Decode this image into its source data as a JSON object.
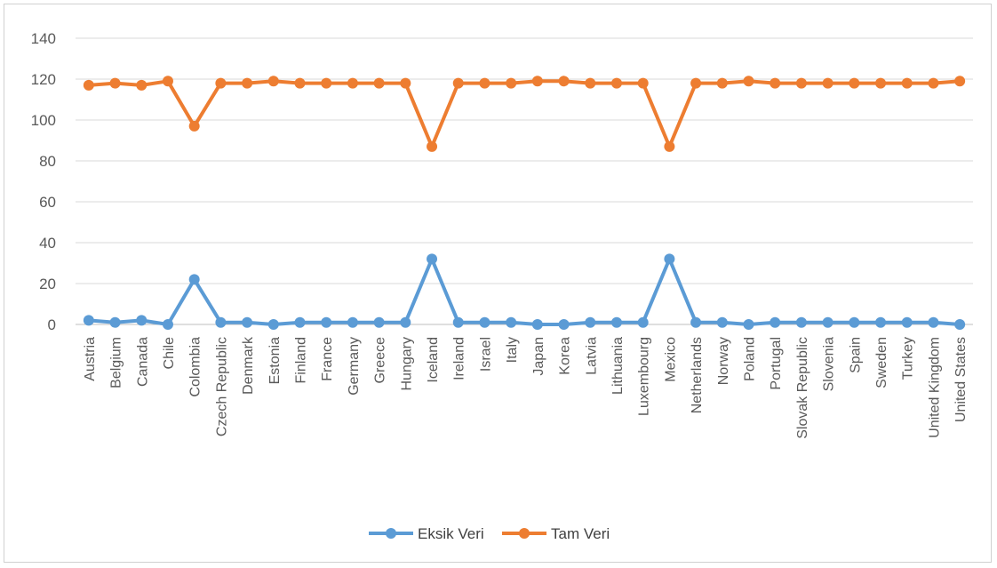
{
  "chart_data": {
    "type": "line",
    "categories": [
      "Austria",
      "Belgium",
      "Canada",
      "Chile",
      "Colombia",
      "Czech Republic",
      "Denmark",
      "Estonia",
      "Finland",
      "France",
      "Germany",
      "Greece",
      "Hungary",
      "Iceland",
      "Ireland",
      "Israel",
      "Italy",
      "Japan",
      "Korea",
      "Latvia",
      "Lithuania",
      "Luxembourg",
      "Mexico",
      "Netherlands",
      "Norway",
      "Poland",
      "Portugal",
      "Slovak Republic",
      "Slovenia",
      "Spain",
      "Sweden",
      "Turkey",
      "United Kingdom",
      "United States"
    ],
    "series": [
      {
        "name": "Eksik Veri",
        "color": "#5b9bd5",
        "values": [
          2,
          1,
          2,
          0,
          22,
          1,
          1,
          0,
          1,
          1,
          1,
          1,
          1,
          32,
          1,
          1,
          1,
          0,
          0,
          1,
          1,
          1,
          32,
          1,
          1,
          0,
          1,
          1,
          1,
          1,
          1,
          1,
          1,
          0
        ]
      },
      {
        "name": "Tam Veri",
        "color": "#ed7d31",
        "values": [
          117,
          118,
          117,
          119,
          97,
          118,
          118,
          119,
          118,
          118,
          118,
          118,
          118,
          87,
          118,
          118,
          118,
          119,
          119,
          118,
          118,
          118,
          87,
          118,
          118,
          119,
          118,
          118,
          118,
          118,
          118,
          118,
          118,
          119
        ]
      }
    ],
    "ylim": [
      0,
      140
    ],
    "yticks": [
      "0",
      "20",
      "40",
      "60",
      "80",
      "100",
      "120",
      "140"
    ],
    "grid": true,
    "legend": "bottom"
  }
}
